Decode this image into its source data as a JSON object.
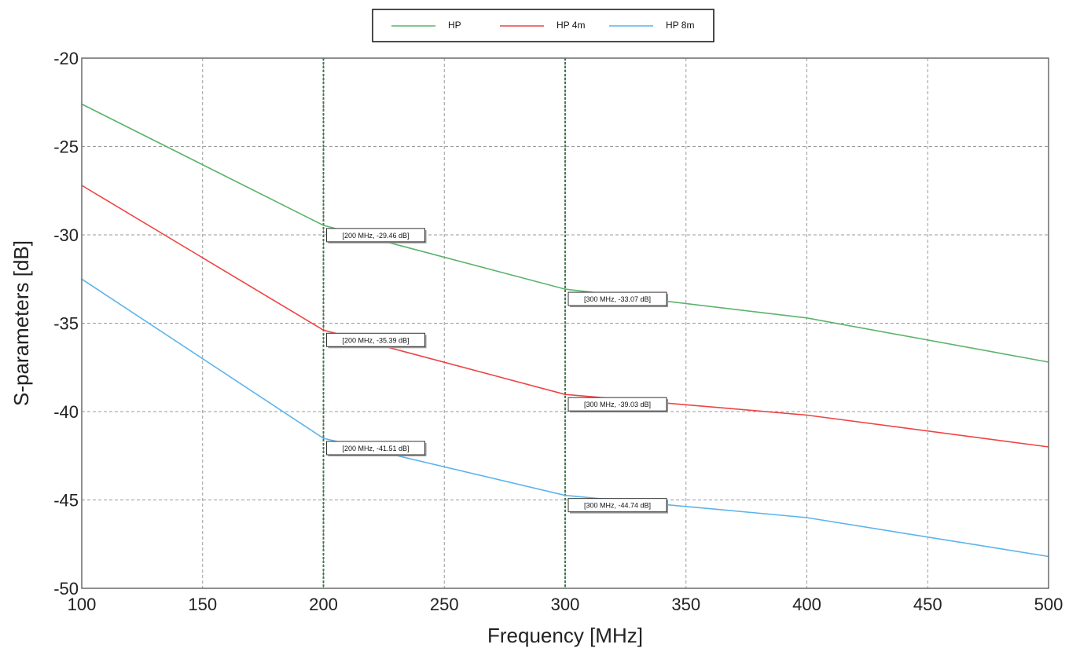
{
  "chart_data": {
    "type": "line",
    "title": "",
    "xlabel": "Frequency [MHz]",
    "ylabel": "S-parameters [dB]",
    "xlim": [
      100,
      500
    ],
    "ylim": [
      -50,
      -20
    ],
    "xticks": [
      100,
      150,
      200,
      250,
      300,
      350,
      400,
      450,
      500
    ],
    "yticks": [
      -20,
      -25,
      -30,
      -35,
      -40,
      -45,
      -50
    ],
    "xtick_labels": [
      "100",
      "150",
      "200",
      "250",
      "300",
      "350",
      "400",
      "450",
      "500"
    ],
    "ytick_labels": [
      "-20",
      "-25",
      "-30",
      "-35",
      "-40",
      "-45",
      "-50"
    ],
    "grid": true,
    "legend_position": "top-center",
    "series": [
      {
        "name": "HP",
        "color": "#5cb36a",
        "x": [
          100,
          200,
          300,
          400,
          500
        ],
        "y": [
          -22.6,
          -29.46,
          -33.07,
          -34.7,
          -37.2
        ]
      },
      {
        "name": "HP 4m",
        "color": "#ee4444",
        "x": [
          100,
          200,
          300,
          400,
          500
        ],
        "y": [
          -27.2,
          -35.39,
          -39.03,
          -40.2,
          -42.0
        ]
      },
      {
        "name": "HP 8m",
        "color": "#5ab4ec",
        "x": [
          100,
          200,
          300,
          400,
          500
        ],
        "y": [
          -32.5,
          -41.51,
          -44.74,
          -46.0,
          -48.2
        ]
      }
    ],
    "marker_lines": {
      "color": "#3f7a4a",
      "x": [
        200,
        300
      ]
    },
    "annotations": [
      {
        "x": 200,
        "y": -29.46,
        "text": "[200 MHz, -29.46 dB]"
      },
      {
        "x": 200,
        "y": -35.39,
        "text": "[200 MHz, -35.39 dB]"
      },
      {
        "x": 200,
        "y": -41.51,
        "text": "[200 MHz, -41.51 dB]"
      },
      {
        "x": 300,
        "y": -33.07,
        "text": "[300 MHz, -33.07 dB]"
      },
      {
        "x": 300,
        "y": -39.03,
        "text": "[300 MHz, -39.03 dB]"
      },
      {
        "x": 300,
        "y": -44.74,
        "text": "[300 MHz, -44.74 dB]"
      }
    ]
  }
}
